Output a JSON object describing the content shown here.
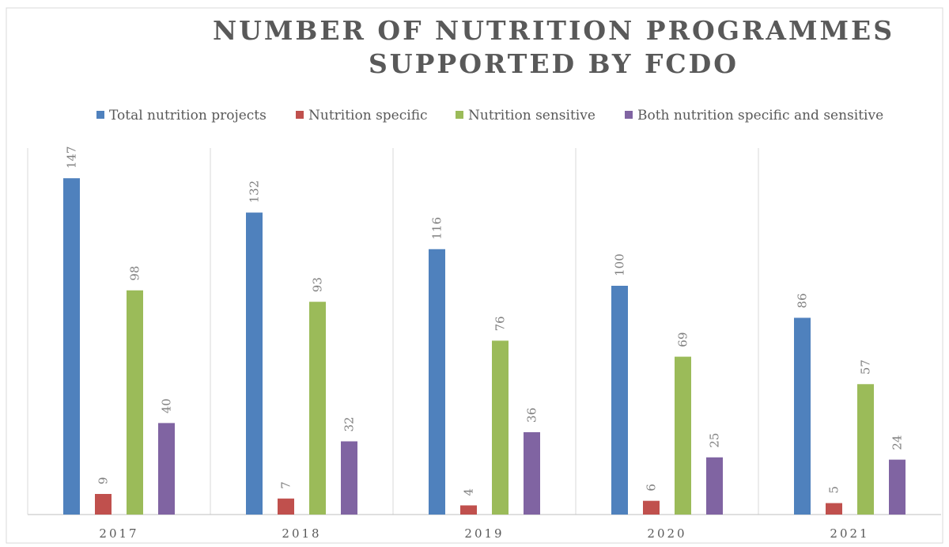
{
  "chart_data": {
    "type": "bar",
    "title": "NUMBER OF NUTRITION PROGRAMMES SUPPORTED BY FCDO",
    "categories": [
      "2017",
      "2018",
      "2019",
      "2020",
      "2021"
    ],
    "series": [
      {
        "name": "Total nutrition projects",
        "color": "#4f81bd",
        "values": [
          147,
          132,
          116,
          100,
          86
        ]
      },
      {
        "name": "Nutrition specific",
        "color": "#c0504d",
        "values": [
          9,
          7,
          4,
          6,
          5
        ]
      },
      {
        "name": "Nutrition sensitive",
        "color": "#9bbb59",
        "values": [
          98,
          93,
          76,
          69,
          57
        ]
      },
      {
        "name": "Both nutrition specific and sensitive",
        "color": "#8064a2",
        "values": [
          40,
          32,
          36,
          25,
          24
        ]
      }
    ],
    "legend": "top"
  }
}
